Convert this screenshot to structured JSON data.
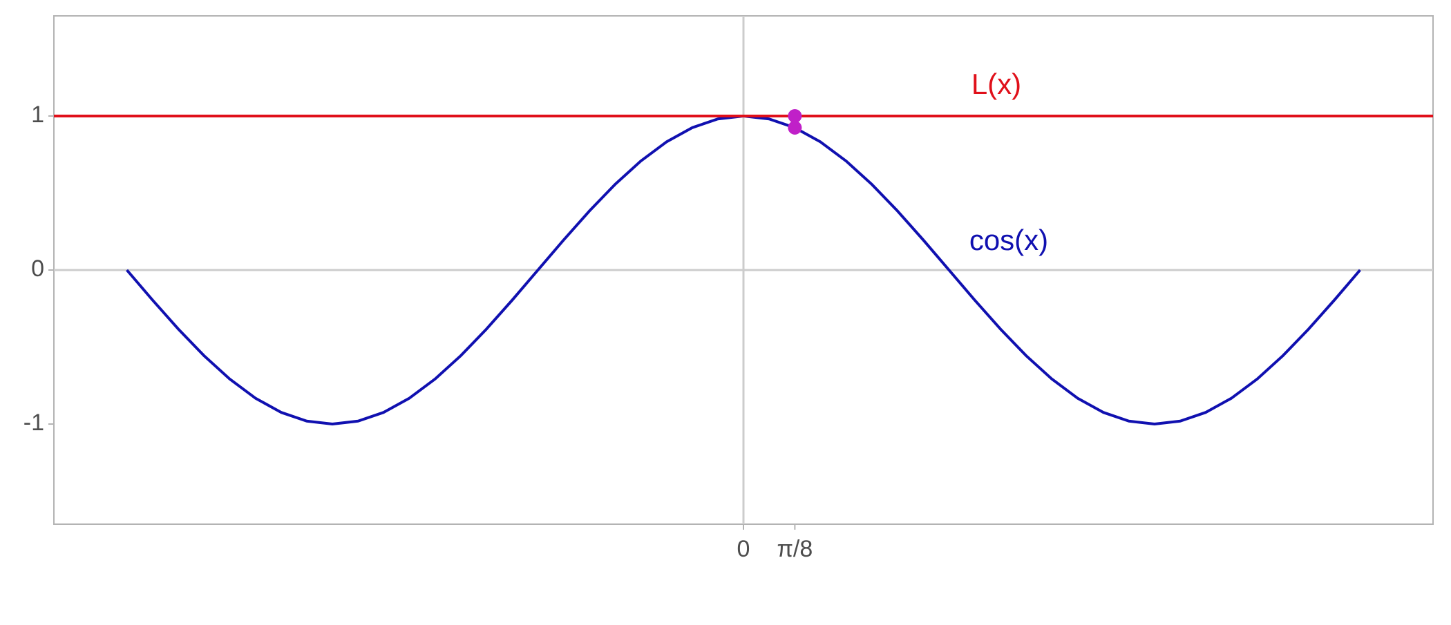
{
  "chart_data": {
    "type": "line",
    "xlim": [
      -5.27,
      5.27
    ],
    "ylim": [
      -1.65,
      1.65
    ],
    "xticks": [
      0,
      {
        "value": 0.3927,
        "label": "π/8"
      }
    ],
    "yticks": [
      -1,
      0,
      1
    ],
    "zero_lines": true,
    "series": [
      {
        "name": "cos(x)",
        "color": "#1010b0",
        "x": [
          -4.7124,
          -4.516,
          -4.3197,
          -4.1233,
          -3.927,
          -3.7306,
          -3.5343,
          -3.3379,
          -3.1416,
          -2.9452,
          -2.7489,
          -2.5525,
          -2.3562,
          -2.1598,
          -1.9635,
          -1.7671,
          -1.5708,
          -1.3744,
          -1.1781,
          -0.9817,
          -0.7854,
          -0.589,
          -0.3927,
          -0.1963,
          0,
          0.1963,
          0.3927,
          0.589,
          0.7854,
          0.9817,
          1.1781,
          1.3744,
          1.5708,
          1.7671,
          1.9635,
          2.1598,
          2.3562,
          2.5525,
          2.7489,
          2.9452,
          3.1416,
          3.3379,
          3.5343,
          3.7306,
          3.927,
          4.1233,
          4.3197,
          4.516,
          4.7124
        ],
        "values": [
          0,
          -0.1951,
          -0.3827,
          -0.5556,
          -0.7071,
          -0.8315,
          -0.9239,
          -0.9808,
          -1,
          -0.9808,
          -0.9239,
          -0.8315,
          -0.7071,
          -0.5556,
          -0.3827,
          -0.1951,
          0,
          0.1951,
          0.3827,
          0.5556,
          0.7071,
          0.8315,
          0.9239,
          0.9808,
          1,
          0.9808,
          0.9239,
          0.8315,
          0.7071,
          0.5556,
          0.3827,
          0.1951,
          0,
          -0.1951,
          -0.3827,
          -0.5556,
          -0.7071,
          -0.8315,
          -0.9239,
          -0.9808,
          -1,
          -0.9808,
          -0.9239,
          -0.8315,
          -0.7071,
          -0.5556,
          -0.3827,
          -0.1951,
          0
        ]
      },
      {
        "name": "L(x)",
        "color": "#e0101a",
        "x": [
          -5.27,
          5.27
        ],
        "values": [
          1,
          1
        ]
      }
    ],
    "points": {
      "color": "#c020c8",
      "x": [
        0.3927,
        0.3927
      ],
      "values": [
        1,
        0.9239
      ]
    }
  }
}
